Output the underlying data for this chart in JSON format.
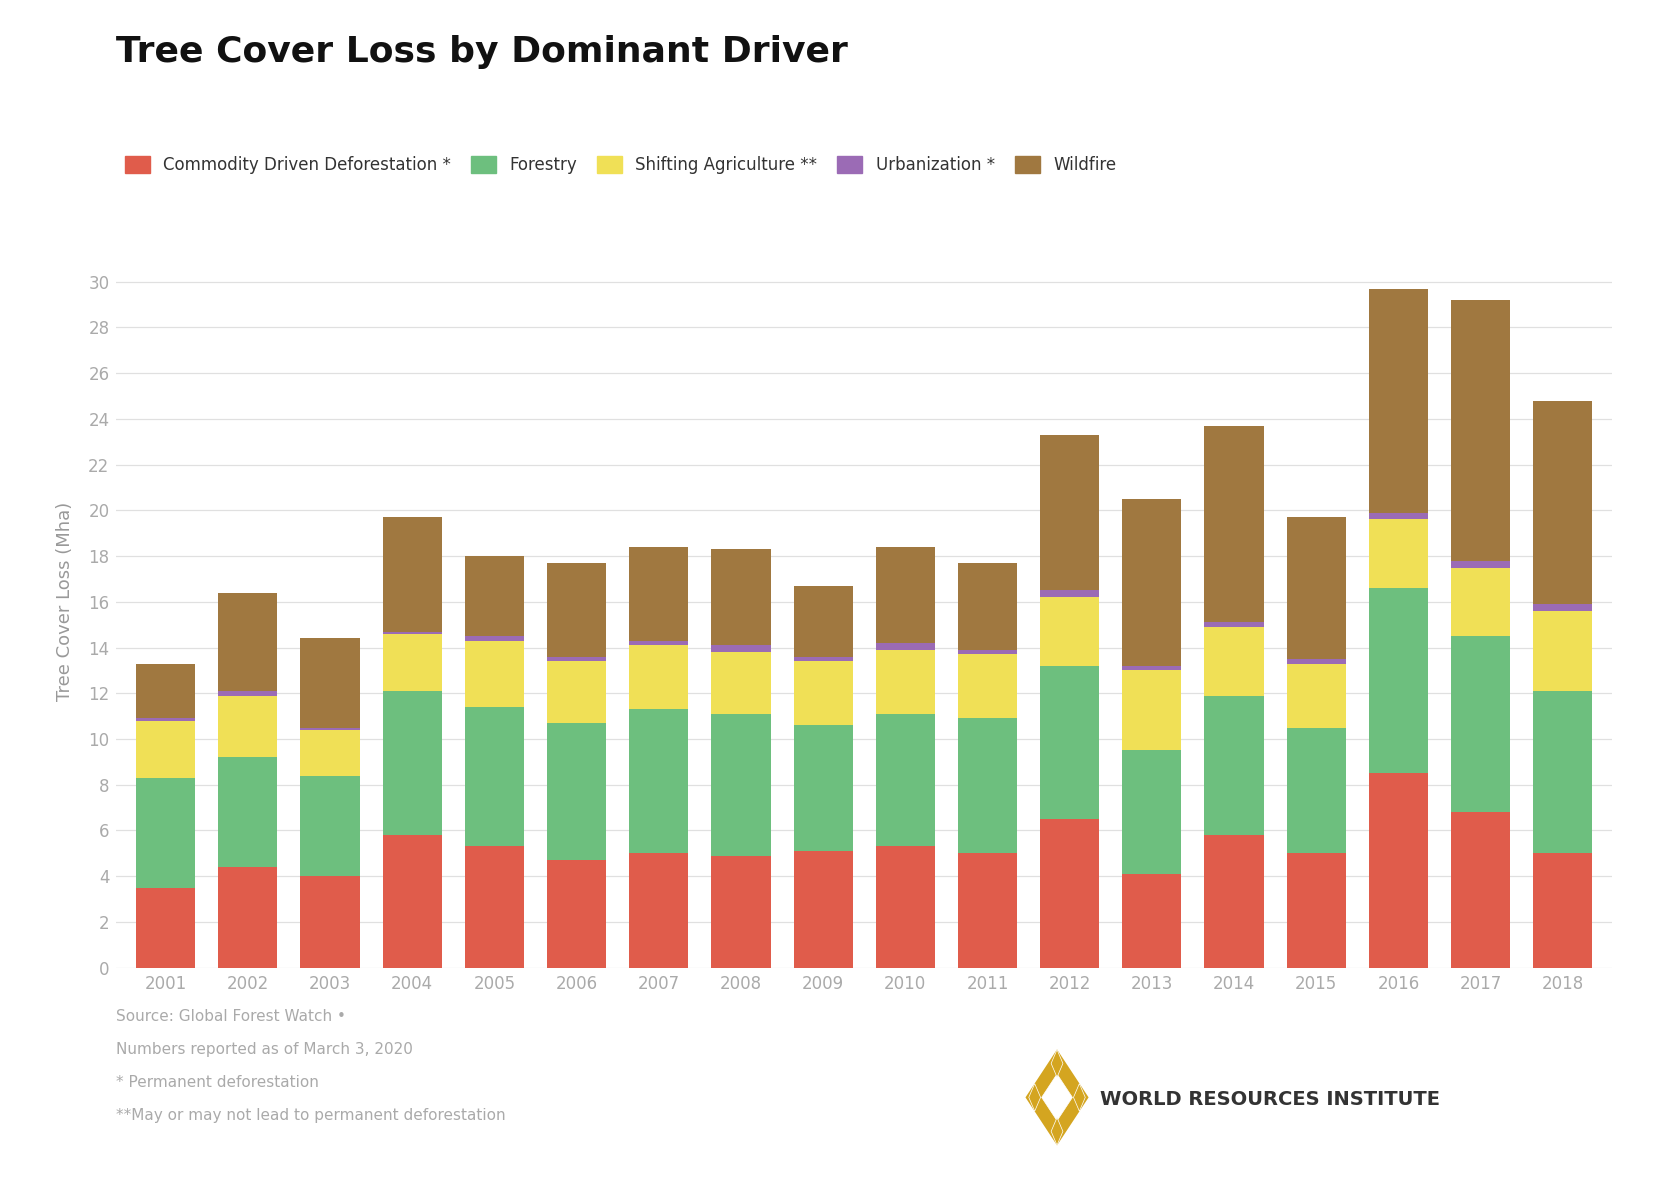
{
  "title": "Tree Cover Loss by Dominant Driver",
  "ylabel": "Tree Cover Loss (Mha)",
  "years": [
    2001,
    2002,
    2003,
    2004,
    2005,
    2006,
    2007,
    2008,
    2009,
    2010,
    2011,
    2012,
    2013,
    2014,
    2015,
    2016,
    2017,
    2018
  ],
  "categories": [
    "Commodity Driven Deforestation *",
    "Forestry",
    "Shifting Agriculture **",
    "Urbanization *",
    "Wildfire"
  ],
  "colors": [
    "#e05c4b",
    "#6dbf7e",
    "#f0e056",
    "#9b6bb5",
    "#a07840"
  ],
  "data": {
    "Commodity Driven Deforestation *": [
      3.5,
      4.4,
      4.0,
      5.8,
      5.3,
      4.7,
      5.0,
      4.9,
      5.1,
      5.3,
      5.0,
      6.5,
      4.1,
      5.8,
      5.0,
      8.5,
      6.8,
      5.0
    ],
    "Forestry": [
      4.8,
      4.8,
      4.4,
      6.3,
      6.1,
      6.0,
      6.3,
      6.2,
      5.5,
      5.8,
      5.9,
      6.7,
      5.4,
      6.1,
      5.5,
      8.1,
      7.7,
      7.1
    ],
    "Shifting Agriculture **": [
      2.5,
      2.7,
      2.0,
      2.5,
      2.9,
      2.7,
      2.8,
      2.7,
      2.8,
      2.8,
      2.8,
      3.0,
      3.5,
      3.0,
      2.8,
      3.0,
      3.0,
      3.5
    ],
    "Urbanization *": [
      0.1,
      0.2,
      0.1,
      0.1,
      0.2,
      0.2,
      0.2,
      0.3,
      0.2,
      0.3,
      0.2,
      0.3,
      0.2,
      0.2,
      0.2,
      0.3,
      0.3,
      0.3
    ],
    "Wildfire": [
      2.4,
      4.3,
      3.9,
      5.0,
      3.5,
      4.1,
      4.1,
      4.2,
      3.1,
      4.2,
      3.8,
      6.8,
      7.3,
      8.6,
      6.2,
      9.8,
      11.4,
      8.9
    ]
  },
  "ylim": [
    0,
    32
  ],
  "yticks": [
    0,
    2,
    4,
    6,
    8,
    10,
    12,
    14,
    16,
    18,
    20,
    22,
    24,
    26,
    28,
    30
  ],
  "background_color": "#ffffff",
  "grid_color": "#e0e0e0",
  "source_text_lines": [
    "Source: Global Forest Watch •",
    "Numbers reported as of March 3, 2020",
    "* Permanent deforestation",
    "**May or may not lead to permanent deforestation"
  ],
  "wri_text": "WORLD RESOURCES INSTITUTE",
  "title_fontsize": 26,
  "label_fontsize": 13,
  "tick_fontsize": 12,
  "legend_fontsize": 12,
  "source_fontsize": 11,
  "wri_fontsize": 14,
  "bar_width": 0.72
}
